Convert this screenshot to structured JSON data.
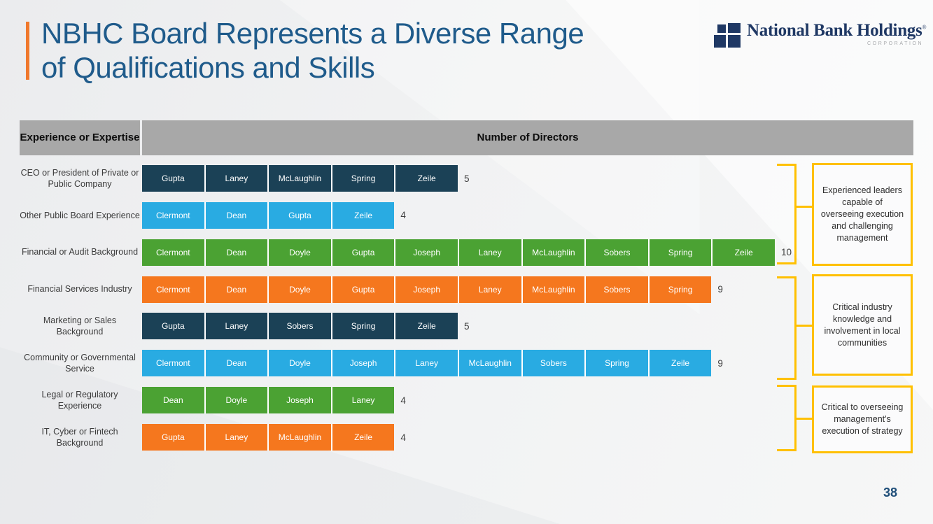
{
  "slide": {
    "title_line1": "NBHC Board Represents a Diverse Range",
    "title_line2": "of Qualifications and Skills",
    "page_number": "38"
  },
  "logo": {
    "name": "National Bank Holdings",
    "registered_mark": "®",
    "subtitle": "CORPORATION"
  },
  "table": {
    "header_left": "Experience or Expertise",
    "header_right": "Number of Directors"
  },
  "colors": {
    "navy": "#1B4156",
    "blue": "#29ABE2",
    "green": "#4BA233",
    "orange": "#F5771E",
    "yellow": "#FFC000",
    "header_gray": "#A8A8A8",
    "title_blue": "#1F5B8B",
    "logo_navy": "#1F3864",
    "accent_orange": "#F0782C"
  },
  "rows": [
    {
      "label": "CEO or President of Private or Public Company",
      "members": [
        "Gupta",
        "Laney",
        "McLaughlin",
        "Spring",
        "Zeile"
      ],
      "count": "5",
      "color": "navy"
    },
    {
      "label": "Other Public Board Experience",
      "members": [
        "Clermont",
        "Dean",
        "Gupta",
        "Zeile"
      ],
      "count": "4",
      "color": "blue"
    },
    {
      "label": "Financial or Audit Background",
      "members": [
        "Clermont",
        "Dean",
        "Doyle",
        "Gupta",
        "Joseph",
        "Laney",
        "McLaughlin",
        "Sobers",
        "Spring",
        "Zeile"
      ],
      "count": "10",
      "color": "green"
    },
    {
      "label": "Financial Services Industry",
      "members": [
        "Clermont",
        "Dean",
        "Doyle",
        "Gupta",
        "Joseph",
        "Laney",
        "McLaughlin",
        "Sobers",
        "Spring"
      ],
      "count": "9",
      "color": "orange"
    },
    {
      "label": "Marketing or Sales Background",
      "members": [
        "Gupta",
        "Laney",
        "Sobers",
        "Spring",
        "Zeile"
      ],
      "count": "5",
      "color": "navy"
    },
    {
      "label": "Community or Governmental Service",
      "members": [
        "Clermont",
        "Dean",
        "Doyle",
        "Joseph",
        "Laney",
        "McLaughlin",
        "Sobers",
        "Spring",
        "Zeile"
      ],
      "count": "9",
      "color": "blue"
    },
    {
      "label": "Legal or Regulatory Experience",
      "members": [
        "Dean",
        "Doyle",
        "Joseph",
        "Laney"
      ],
      "count": "4",
      "color": "green"
    },
    {
      "label": "IT, Cyber or Fintech Background",
      "members": [
        "Gupta",
        "Laney",
        "McLaughlin",
        "Zeile"
      ],
      "count": "4",
      "color": "orange"
    }
  ],
  "annotations": [
    {
      "text": "Experienced leaders capable of overseeing execution and challenging management",
      "groups_rows": "1-3"
    },
    {
      "text": "Critical industry knowledge and involvement in local communities",
      "groups_rows": "4-6"
    },
    {
      "text": "Critical to overseeing management's execution of strategy",
      "groups_rows": "7-8"
    }
  ],
  "chart_data": {
    "type": "bar",
    "orientation": "horizontal",
    "title": "Number of Directors",
    "categories": [
      "CEO or President of Private or Public Company",
      "Other Public Board Experience",
      "Financial or Audit Background",
      "Financial Services Industry",
      "Marketing or Sales Background",
      "Community or Governmental Service",
      "Legal or Regulatory Experience",
      "IT, Cyber or Fintech Background"
    ],
    "values": [
      5,
      4,
      10,
      9,
      5,
      9,
      4,
      4
    ],
    "bar_segment_labels": [
      [
        "Gupta",
        "Laney",
        "McLaughlin",
        "Spring",
        "Zeile"
      ],
      [
        "Clermont",
        "Dean",
        "Gupta",
        "Zeile"
      ],
      [
        "Clermont",
        "Dean",
        "Doyle",
        "Gupta",
        "Joseph",
        "Laney",
        "McLaughlin",
        "Sobers",
        "Spring",
        "Zeile"
      ],
      [
        "Clermont",
        "Dean",
        "Doyle",
        "Gupta",
        "Joseph",
        "Laney",
        "McLaughlin",
        "Sobers",
        "Spring"
      ],
      [
        "Gupta",
        "Laney",
        "Sobers",
        "Spring",
        "Zeile"
      ],
      [
        "Clermont",
        "Dean",
        "Doyle",
        "Joseph",
        "Laney",
        "McLaughlin",
        "Sobers",
        "Spring",
        "Zeile"
      ],
      [
        "Dean",
        "Doyle",
        "Joseph",
        "Laney"
      ],
      [
        "Gupta",
        "Laney",
        "McLaughlin",
        "Zeile"
      ]
    ],
    "bar_colors": [
      "#1B4156",
      "#29ABE2",
      "#4BA233",
      "#F5771E",
      "#1B4156",
      "#29ABE2",
      "#4BA233",
      "#F5771E"
    ],
    "xlim": [
      0,
      10
    ],
    "grid": false,
    "legend": false,
    "value_labels": "end-of-bar"
  }
}
